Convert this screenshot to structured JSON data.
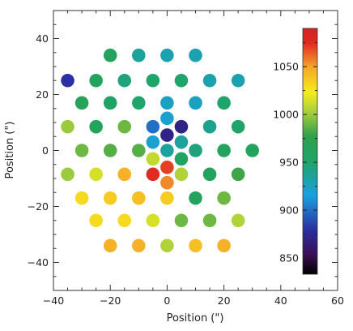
{
  "chart_data": {
    "type": "scatter",
    "xlabel": "Position (\")",
    "ylabel": "Position (\")",
    "xlim": [
      -40,
      60
    ],
    "ylim": [
      -50,
      50
    ],
    "x_ticks": [
      -40,
      -20,
      0,
      20,
      40,
      60
    ],
    "y_ticks": [
      -40,
      -20,
      0,
      20,
      40
    ],
    "colorbar": {
      "range": [
        833,
        1090
      ],
      "ticks": [
        850,
        900,
        950,
        1000,
        1050
      ],
      "colormap": "rainbow (purple-blue-green-yellow-red)"
    },
    "points": [
      {
        "x": -20,
        "y": 34,
        "value": 960
      },
      {
        "x": -10,
        "y": 34,
        "value": 935
      },
      {
        "x": 0,
        "y": 34,
        "value": 930
      },
      {
        "x": 10,
        "y": 34,
        "value": 930
      },
      {
        "x": -35,
        "y": 25,
        "value": 880
      },
      {
        "x": -25,
        "y": 25,
        "value": 960
      },
      {
        "x": -15,
        "y": 25,
        "value": 945
      },
      {
        "x": -5,
        "y": 25,
        "value": 950
      },
      {
        "x": 5,
        "y": 25,
        "value": 950
      },
      {
        "x": 15,
        "y": 25,
        "value": 930
      },
      {
        "x": 25,
        "y": 25,
        "value": 930
      },
      {
        "x": -30,
        "y": 17,
        "value": 965
      },
      {
        "x": -20,
        "y": 17,
        "value": 955
      },
      {
        "x": -10,
        "y": 17,
        "value": 950
      },
      {
        "x": 0,
        "y": 17,
        "value": 925
      },
      {
        "x": 10,
        "y": 17,
        "value": 925
      },
      {
        "x": 20,
        "y": 17,
        "value": 950
      },
      {
        "x": 0,
        "y": 11.5,
        "value": 920
      },
      {
        "x": -35,
        "y": 8.5,
        "value": 1000
      },
      {
        "x": -25,
        "y": 8.5,
        "value": 960
      },
      {
        "x": -15,
        "y": 8.5,
        "value": 990
      },
      {
        "x": -5,
        "y": 8.5,
        "value": 900
      },
      {
        "x": 5,
        "y": 8.5,
        "value": 870
      },
      {
        "x": 15,
        "y": 8.5,
        "value": 940
      },
      {
        "x": 25,
        "y": 8.5,
        "value": 950
      },
      {
        "x": 0,
        "y": 5.5,
        "value": 870
      },
      {
        "x": -5,
        "y": 3,
        "value": 920
      },
      {
        "x": 5,
        "y": 3,
        "value": 935
      },
      {
        "x": -30,
        "y": 0,
        "value": 990
      },
      {
        "x": -20,
        "y": 0,
        "value": 985
      },
      {
        "x": -10,
        "y": 0,
        "value": 985
      },
      {
        "x": 0,
        "y": 0,
        "value": 935
      },
      {
        "x": 10,
        "y": 0,
        "value": 945
      },
      {
        "x": 20,
        "y": 0,
        "value": 960
      },
      {
        "x": 30,
        "y": 0,
        "value": 960
      },
      {
        "x": -5,
        "y": -3,
        "value": 1010
      },
      {
        "x": 5,
        "y": -3,
        "value": 955
      },
      {
        "x": 0,
        "y": -6,
        "value": 1070
      },
      {
        "x": -35,
        "y": -8.5,
        "value": 1000
      },
      {
        "x": -25,
        "y": -8.5,
        "value": 1015
      },
      {
        "x": -15,
        "y": -8.5,
        "value": 1045
      },
      {
        "x": -5,
        "y": -8.5,
        "value": 1075
      },
      {
        "x": 5,
        "y": -8.5,
        "value": 1005
      },
      {
        "x": 15,
        "y": -8.5,
        "value": 960
      },
      {
        "x": 25,
        "y": -8.5,
        "value": 980
      },
      {
        "x": 0,
        "y": -11.5,
        "value": 1055
      },
      {
        "x": -30,
        "y": -17,
        "value": 1030
      },
      {
        "x": -20,
        "y": -17,
        "value": 1035
      },
      {
        "x": -10,
        "y": -17,
        "value": 1040
      },
      {
        "x": 0,
        "y": -17,
        "value": 1035
      },
      {
        "x": 10,
        "y": -17,
        "value": 960
      },
      {
        "x": 20,
        "y": -17,
        "value": 990
      },
      {
        "x": -25,
        "y": -25,
        "value": 1030
      },
      {
        "x": -15,
        "y": -25,
        "value": 1030
      },
      {
        "x": -5,
        "y": -25,
        "value": 1015
      },
      {
        "x": 5,
        "y": -25,
        "value": 990
      },
      {
        "x": 15,
        "y": -25,
        "value": 990
      },
      {
        "x": 25,
        "y": -25,
        "value": 1005
      },
      {
        "x": -20,
        "y": -34,
        "value": 1045
      },
      {
        "x": -10,
        "y": -34,
        "value": 1045
      },
      {
        "x": 0,
        "y": -34,
        "value": 1005
      },
      {
        "x": 10,
        "y": -34,
        "value": 1040
      },
      {
        "x": 20,
        "y": -34,
        "value": 1045
      }
    ]
  }
}
